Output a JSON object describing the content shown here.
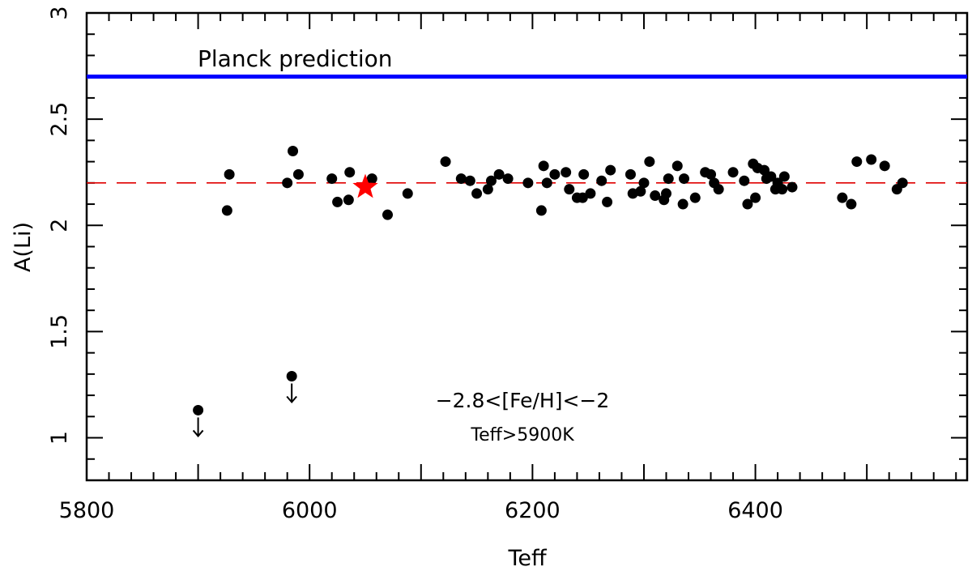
{
  "chart_data": {
    "type": "scatter",
    "title": "",
    "xlabel": "Teff",
    "ylabel": "A(Li)",
    "xlim": [
      5800,
      6590
    ],
    "ylim": [
      0.8,
      3.0
    ],
    "x_ticks": [
      5800,
      6000,
      6200,
      6400
    ],
    "x_tick_labels": [
      "5800",
      "6000",
      "6200",
      "6400"
    ],
    "y_ticks": [
      1,
      1.5,
      2,
      2.5,
      3
    ],
    "y_tick_labels": [
      "1",
      "1.5",
      "2",
      "2.5",
      "3"
    ],
    "grid": false,
    "colors": {
      "planck": "#0000ff",
      "mean": "#e00000",
      "points": "#000000",
      "star": "#ff0000"
    },
    "planck_line": {
      "y": 2.7,
      "label": "Planck prediction"
    },
    "mean_line": {
      "y": 2.2
    },
    "series": [
      {
        "kind": "points",
        "points": [
          [
            5926,
            2.07
          ],
          [
            5928,
            2.24
          ],
          [
            5980,
            2.2
          ],
          [
            5985,
            2.35
          ],
          [
            5990,
            2.24
          ],
          [
            6020,
            2.22
          ],
          [
            6025,
            2.11
          ],
          [
            6035,
            2.12
          ],
          [
            6036,
            2.25
          ],
          [
            6056,
            2.22
          ],
          [
            6070,
            2.05
          ],
          [
            6088,
            2.15
          ],
          [
            6122,
            2.3
          ],
          [
            6136,
            2.22
          ],
          [
            6144,
            2.21
          ],
          [
            6150,
            2.15
          ],
          [
            6160,
            2.17
          ],
          [
            6163,
            2.21
          ],
          [
            6170,
            2.24
          ],
          [
            6178,
            2.22
          ],
          [
            6196,
            2.2
          ],
          [
            6208,
            2.07
          ],
          [
            6210,
            2.28
          ],
          [
            6213,
            2.2
          ],
          [
            6220,
            2.24
          ],
          [
            6230,
            2.25
          ],
          [
            6233,
            2.17
          ],
          [
            6240,
            2.13
          ],
          [
            6245,
            2.13
          ],
          [
            6246,
            2.24
          ],
          [
            6252,
            2.15
          ],
          [
            6262,
            2.21
          ],
          [
            6267,
            2.11
          ],
          [
            6270,
            2.26
          ],
          [
            6288,
            2.24
          ],
          [
            6290,
            2.15
          ],
          [
            6297,
            2.16
          ],
          [
            6300,
            2.2
          ],
          [
            6305,
            2.3
          ],
          [
            6310,
            2.14
          ],
          [
            6318,
            2.12
          ],
          [
            6320,
            2.15
          ],
          [
            6322,
            2.22
          ],
          [
            6330,
            2.28
          ],
          [
            6335,
            2.1
          ],
          [
            6336,
            2.22
          ],
          [
            6346,
            2.13
          ],
          [
            6355,
            2.25
          ],
          [
            6360,
            2.24
          ],
          [
            6363,
            2.2
          ],
          [
            6367,
            2.17
          ],
          [
            6380,
            2.25
          ],
          [
            6390,
            2.21
          ],
          [
            6393,
            2.1
          ],
          [
            6398,
            2.29
          ],
          [
            6400,
            2.13
          ],
          [
            6402,
            2.27
          ],
          [
            6408,
            2.26
          ],
          [
            6410,
            2.22
          ],
          [
            6414,
            2.23
          ],
          [
            6418,
            2.17
          ],
          [
            6420,
            2.2
          ],
          [
            6424,
            2.17
          ],
          [
            6426,
            2.23
          ],
          [
            6433,
            2.18
          ],
          [
            6478,
            2.13
          ],
          [
            6486,
            2.1
          ],
          [
            6491,
            2.3
          ],
          [
            6504,
            2.31
          ],
          [
            6516,
            2.28
          ],
          [
            6527,
            2.17
          ],
          [
            6532,
            2.2
          ]
        ]
      },
      {
        "kind": "upper-limits",
        "points": [
          [
            5900,
            1.13
          ],
          [
            5984,
            1.29
          ]
        ]
      },
      {
        "kind": "star",
        "points": [
          [
            6050,
            2.18
          ]
        ]
      }
    ],
    "annotations": [
      "−2.8<[Fe/H]<−2",
      "Teff>5900K"
    ]
  }
}
